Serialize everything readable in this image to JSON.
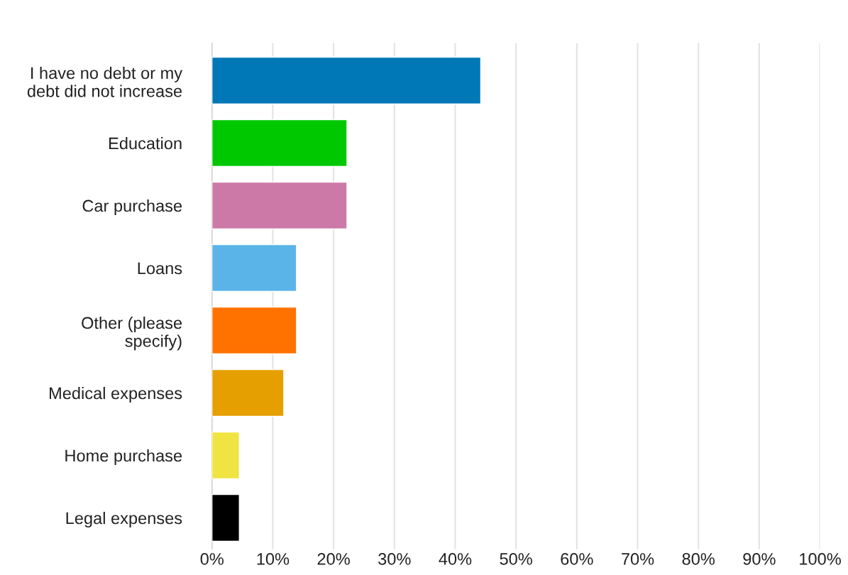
{
  "chart_data": {
    "type": "bar",
    "orientation": "horizontal",
    "categories": [
      "I have no debt or my\ndebt did not increase",
      "Education",
      "Car purchase",
      "Loans",
      "Other (please\nspecify)",
      "Medical expenses",
      "Home purchase",
      "Legal expenses"
    ],
    "values": [
      44.2,
      22.2,
      22.2,
      13.9,
      13.9,
      11.8,
      4.5,
      4.5
    ],
    "colors": [
      "#0077b6",
      "#00c800",
      "#cc79a7",
      "#5ab4e8",
      "#ff7200",
      "#e69f00",
      "#f0e442",
      "#000000"
    ],
    "xlim": [
      0,
      100
    ],
    "xticks": [
      {
        "value": 0,
        "label": "0%"
      },
      {
        "value": 10,
        "label": "10%"
      },
      {
        "value": 20,
        "label": "20%"
      },
      {
        "value": 30,
        "label": "30%"
      },
      {
        "value": 40,
        "label": "40%"
      },
      {
        "value": 50,
        "label": "50%"
      },
      {
        "value": 60,
        "label": "60%"
      },
      {
        "value": 70,
        "label": "70%"
      },
      {
        "value": 80,
        "label": "80%"
      },
      {
        "value": 90,
        "label": "90%"
      },
      {
        "value": 100,
        "label": "100%"
      }
    ],
    "grid": "x"
  }
}
